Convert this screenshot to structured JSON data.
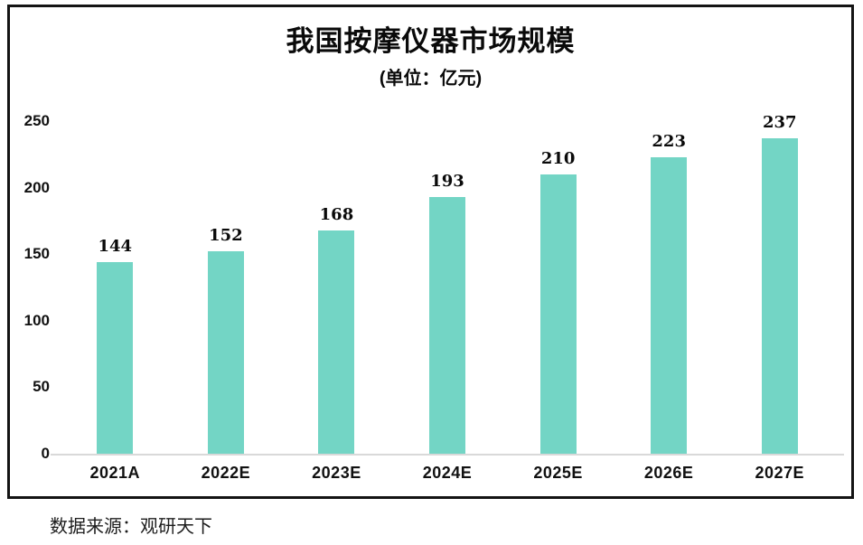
{
  "chart": {
    "title": "我国按摩仪器市场规模",
    "subtitle": "(单位：亿元)",
    "source": "数据来源：观研天下"
  },
  "chart_data": {
    "type": "bar",
    "title": "我国按摩仪器市场规模",
    "subtitle": "(单位：亿元)",
    "unit": "亿元",
    "categories": [
      "2021A",
      "2022E",
      "2023E",
      "2024E",
      "2025E",
      "2026E",
      "2027E"
    ],
    "values": [
      144,
      152,
      168,
      193,
      210,
      223,
      237
    ],
    "yticks": [
      0,
      50,
      100,
      150,
      200,
      250
    ],
    "ylim": [
      0,
      250
    ],
    "bar_color": "#73d5c5",
    "grid": false,
    "legend": false,
    "source": "数据来源：观研天下"
  }
}
